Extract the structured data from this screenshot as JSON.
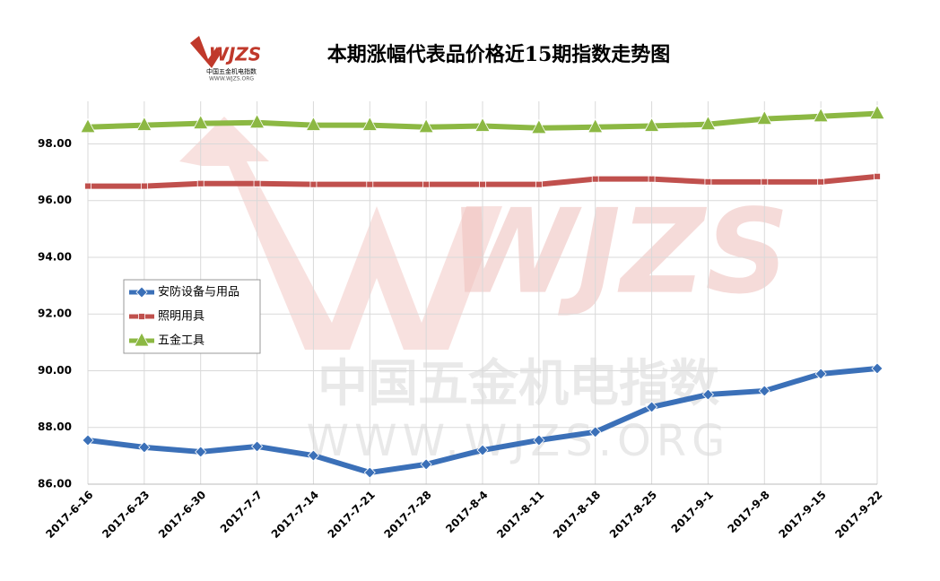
{
  "chart_data": {
    "type": "line",
    "title": "本期涨幅代表品价格近15期指数走势图",
    "logo": {
      "mark": "WJZS",
      "name": "中国五金机电指数",
      "url": "WWW.WJZS.ORG"
    },
    "categories": [
      "2017-6-16",
      "2017-6-23",
      "2017-6-30",
      "2017-7-7",
      "2017-7-14",
      "2017-7-21",
      "2017-7-28",
      "2017-8-4",
      "2017-8-11",
      "2017-8-18",
      "2017-8-25",
      "2017-9-1",
      "2017-9-8",
      "2017-9-15",
      "2017-9-22"
    ],
    "series": [
      {
        "name": "安防设备与用品",
        "color": "#3b70b8",
        "marker": "diamond",
        "values": [
          87.55,
          87.3,
          87.14,
          87.33,
          87.01,
          86.41,
          86.7,
          87.2,
          87.55,
          87.84,
          88.72,
          89.16,
          89.29,
          89.89,
          90.08
        ]
      },
      {
        "name": "照明用具",
        "color": "#c0504d",
        "marker": "square",
        "values": [
          96.51,
          96.51,
          96.6,
          96.6,
          96.57,
          96.57,
          96.57,
          96.57,
          96.57,
          96.76,
          96.76,
          96.66,
          96.66,
          96.66,
          96.85
        ]
      },
      {
        "name": "五金工具",
        "color": "#8cb843",
        "marker": "triangle",
        "values": [
          98.59,
          98.66,
          98.72,
          98.75,
          98.66,
          98.66,
          98.59,
          98.63,
          98.56,
          98.59,
          98.63,
          98.69,
          98.88,
          98.97,
          99.07
        ]
      }
    ],
    "ylim": [
      86,
      99.5
    ],
    "yticks": [
      {
        "value": 86,
        "label": "86.00"
      },
      {
        "value": 88,
        "label": "88.00"
      },
      {
        "value": 90,
        "label": "90.00"
      },
      {
        "value": 92,
        "label": "92.00"
      },
      {
        "value": 94,
        "label": "94.00"
      },
      {
        "value": 96,
        "label": "96.00"
      },
      {
        "value": 98,
        "label": "98.00"
      }
    ],
    "grid": true,
    "legend": "left"
  }
}
